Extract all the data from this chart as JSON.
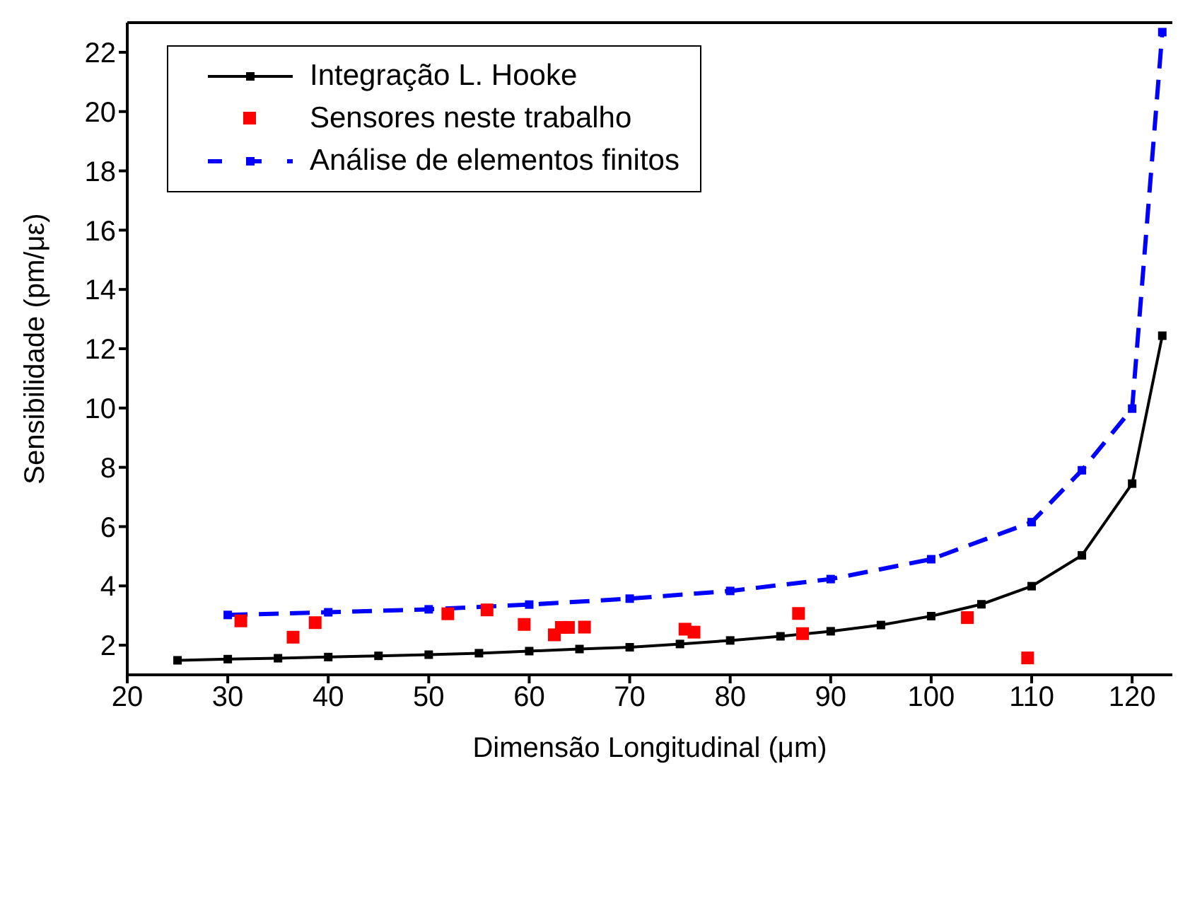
{
  "chart_data": {
    "type": "line",
    "xlabel": "Dimensão Longitudinal (μm)",
    "ylabel": "Sensibilidade (pm/με)",
    "xlim": [
      20,
      124
    ],
    "xticks": [
      20,
      30,
      40,
      50,
      60,
      70,
      80,
      90,
      100,
      110,
      120
    ],
    "ylim": [
      1,
      23
    ],
    "yticks": [
      2,
      4,
      6,
      8,
      10,
      12,
      14,
      16,
      18,
      20,
      22
    ],
    "grid": false,
    "legend": "top left",
    "marker": "square",
    "series": [
      {
        "name": "Integração L. Hooke",
        "color": "#000000",
        "line_style": "solid",
        "x": [
          25,
          30,
          35,
          40,
          45,
          50,
          55,
          60,
          65,
          70,
          75,
          80,
          85,
          90,
          95,
          100,
          105,
          110,
          115,
          120,
          123
        ],
        "values": [
          1.49,
          1.53,
          1.56,
          1.6,
          1.64,
          1.68,
          1.73,
          1.8,
          1.87,
          1.93,
          2.04,
          2.16,
          2.3,
          2.47,
          2.68,
          2.98,
          3.38,
          3.99,
          5.03,
          7.45,
          12.44
        ]
      },
      {
        "name": "Sensores neste trabalho",
        "type": "scatter",
        "color": "#ff0000",
        "x": [
          31.3,
          36.5,
          38.7,
          51.9,
          55.8,
          59.5,
          62.5,
          63.2,
          63.9,
          65.5,
          75.5,
          76.4,
          86.8,
          87.2,
          103.6,
          109.6
        ],
        "values": [
          2.82,
          2.27,
          2.76,
          3.06,
          3.19,
          2.7,
          2.35,
          2.6,
          2.6,
          2.61,
          2.54,
          2.44,
          3.07,
          2.39,
          2.93,
          1.57
        ]
      },
      {
        "name": "Análise de elementos finitos",
        "color": "#0000ff",
        "line_style": "dashed",
        "x": [
          30,
          40,
          50,
          60,
          70,
          80,
          90,
          100,
          110,
          115,
          120,
          123
        ],
        "values": [
          3.02,
          3.11,
          3.21,
          3.37,
          3.57,
          3.83,
          4.23,
          4.9,
          6.15,
          7.9,
          9.98,
          22.68
        ]
      }
    ]
  }
}
